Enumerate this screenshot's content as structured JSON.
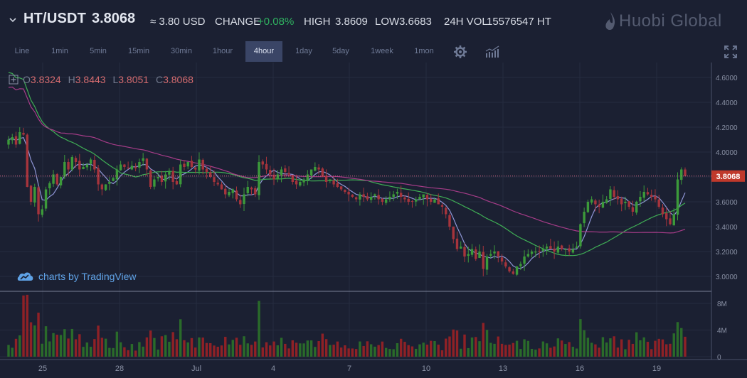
{
  "header": {
    "pair": "HT/USDT",
    "price": "3.8068",
    "usd_label": "≈ 3.80 USD",
    "change_label": "CHANGE",
    "change_value": "+0.08%",
    "high_label": "HIGH",
    "high_value": "3.8609",
    "low_label": "LOW",
    "low_value": "3.6683",
    "vol_label": "24H VOL",
    "vol_value": "15576547 HT",
    "logo_text": "Huobi Global"
  },
  "toolbar": {
    "intervals": [
      "Line",
      "1min",
      "5min",
      "15min",
      "30min",
      "1hour",
      "4hour",
      "1day",
      "5day",
      "1week",
      "1mon"
    ],
    "active_interval": "4hour",
    "icons": [
      "gear-icon",
      "indicators-icon",
      "fullscreen-icon"
    ]
  },
  "ohlc": {
    "o_label": "O",
    "o_value": "3.8324",
    "h_label": "H",
    "h_value": "3.8443",
    "l_label": "L",
    "l_value": "3.8051",
    "c_label": "C",
    "c_value": "3.8068"
  },
  "watermark": "charts by TradingView",
  "colors": {
    "background": "#1b2032",
    "up": "#3c9a3a",
    "down": "#a6343c",
    "ma_blue": "#8f96d6",
    "ma_green": "#3fae55",
    "ma_magenta": "#a63c88",
    "price_line": "#d96b86",
    "vol_up": "#2a6b2a",
    "vol_down": "#8f2126"
  },
  "chart_data": [
    {
      "type": "candlestick",
      "title": "",
      "y_ticks": [
        "3.0000",
        "3.2000",
        "3.4000",
        "3.6000",
        "3.8000",
        "4.0000",
        "4.2000",
        "4.4000",
        "4.6000"
      ],
      "ylim": [
        2.88,
        4.72
      ],
      "x_ticks": [
        "25",
        "28",
        "Jul",
        "4",
        "7",
        "10",
        "13",
        "16",
        "19"
      ],
      "last_price_label": "3.8068",
      "last_price": 3.8068,
      "grid": true,
      "series_close": [
        4.1,
        4.12,
        4.06,
        4.16,
        4.14,
        3.72,
        3.6,
        3.72,
        3.5,
        3.54,
        3.7,
        3.75,
        3.82,
        3.74,
        3.8,
        3.92,
        3.86,
        3.96,
        3.92,
        3.86,
        3.88,
        3.9,
        3.94,
        3.86,
        3.74,
        3.7,
        3.74,
        3.76,
        3.79,
        3.86,
        3.9,
        3.88,
        3.87,
        3.89,
        3.87,
        3.92,
        3.95,
        3.86,
        3.72,
        3.78,
        3.8,
        3.76,
        3.82,
        3.84,
        3.76,
        3.74,
        3.9,
        3.88,
        3.92,
        3.88,
        3.86,
        3.94,
        3.86,
        3.84,
        3.8,
        3.76,
        3.74,
        3.7,
        3.66,
        3.68,
        3.7,
        3.62,
        3.58,
        3.66,
        3.72,
        3.7,
        3.66,
        3.92,
        3.9,
        3.86,
        3.82,
        3.78,
        3.82,
        3.86,
        3.84,
        3.82,
        3.76,
        3.74,
        3.76,
        3.78,
        3.82,
        3.86,
        3.88,
        3.86,
        3.8,
        3.76,
        3.78,
        3.74,
        3.72,
        3.7,
        3.68,
        3.66,
        3.64,
        3.62,
        3.66,
        3.64,
        3.62,
        3.64,
        3.66,
        3.62,
        3.6,
        3.62,
        3.64,
        3.66,
        3.68,
        3.64,
        3.62,
        3.6,
        3.6,
        3.62,
        3.64,
        3.66,
        3.62,
        3.6,
        3.62,
        3.58,
        3.56,
        3.5,
        3.4,
        3.3,
        3.22,
        3.24,
        3.16,
        3.18,
        3.22,
        3.14,
        3.2,
        3.06,
        3.16,
        3.18,
        3.2,
        3.16,
        3.12,
        3.08,
        3.04,
        3.02,
        3.08,
        3.1,
        3.16,
        3.18,
        3.2,
        3.2,
        3.2,
        3.22,
        3.24,
        3.22,
        3.2,
        3.24,
        3.22,
        3.22,
        3.2,
        3.22,
        3.24,
        3.42,
        3.52,
        3.6,
        3.62,
        3.58,
        3.56,
        3.6,
        3.62,
        3.7,
        3.64,
        3.62,
        3.58,
        3.6,
        3.56,
        3.52,
        3.6,
        3.64,
        3.68,
        3.66,
        3.64,
        3.62,
        3.56,
        3.5,
        3.46,
        3.42,
        3.5,
        3.78,
        3.86,
        3.8068
      ],
      "volume_ticks": [
        "0",
        "4M",
        "8M"
      ]
    }
  ]
}
